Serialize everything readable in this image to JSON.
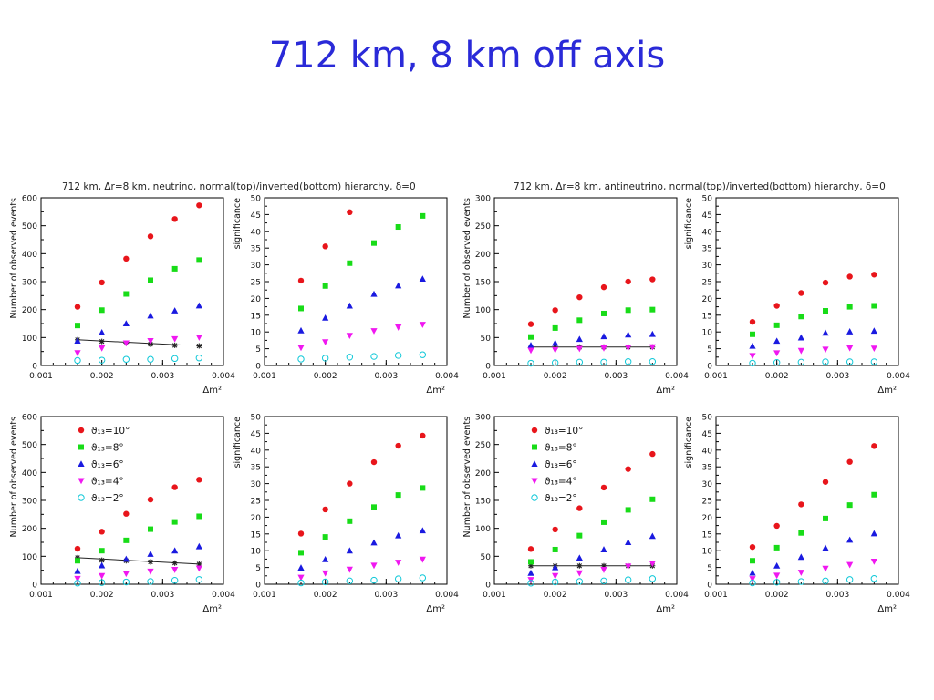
{
  "slide": {
    "title": "712 km, 8 km off axis"
  },
  "panel_titles": [
    "712 km, Δr=8 km, neutrino, normal(top)/inverted(bottom) hierarchy, δ=0",
    "712 km, Δr=8 km, antineutrino, normal(top)/inverted(bottom) hierarchy, δ=0"
  ],
  "chart_data": [
    {
      "id": "nu-normal-events",
      "type": "scatter",
      "xlabel": "Δm²",
      "ylabel": "Number of observed events",
      "xlim": [
        0.001,
        0.004
      ],
      "ylim": [
        0,
        600
      ],
      "xticks": [
        "0.001",
        "0.002",
        "0.003",
        "0.004"
      ],
      "yticks": [
        "0",
        "100",
        "200",
        "300",
        "400",
        "500",
        "600"
      ],
      "x": [
        0.0016,
        0.002,
        0.0024,
        0.0028,
        0.0032,
        0.0036
      ],
      "series": [
        {
          "theta": "ϑ₁₃=10°",
          "color": "#e8151b",
          "marker": "circle",
          "values": [
            210,
            297,
            382,
            462,
            524,
            573
          ]
        },
        {
          "theta": "ϑ₁₃=8°",
          "color": "#18dc18",
          "marker": "square",
          "values": [
            143,
            198,
            256,
            305,
            346,
            377
          ]
        },
        {
          "theta": "ϑ₁₃=6°",
          "color": "#1a1ae0",
          "marker": "triangle-up",
          "values": [
            88,
            118,
            150,
            178,
            196,
            214
          ]
        },
        {
          "theta": "ϑ₁₃=4°",
          "color": "#f018f0",
          "marker": "triangle-down",
          "values": [
            45,
            62,
            80,
            88,
            95,
            101
          ]
        },
        {
          "theta": "ϑ₁₃=2°",
          "color": "#10c8d8",
          "marker": "open-circle",
          "values": [
            18,
            19,
            22,
            22,
            25,
            27
          ]
        }
      ],
      "background": {
        "color": "#222222",
        "x": [
          0.0016,
          0.002,
          0.0024,
          0.0028,
          0.0032,
          0.0036
        ],
        "values": [
          92,
          86,
          80,
          76,
          72,
          70
        ],
        "line_x": [
          0.0016,
          0.0033
        ]
      }
    },
    {
      "id": "nu-normal-significance",
      "type": "scatter",
      "xlabel": "Δm²",
      "ylabel": "significance",
      "xlim": [
        0.001,
        0.004
      ],
      "ylim": [
        0,
        50
      ],
      "xticks": [
        "0.001",
        "0.002",
        "0.003",
        "0.004"
      ],
      "yticks": [
        "0",
        "5",
        "10",
        "15",
        "20",
        "25",
        "30",
        "35",
        "40",
        "45",
        "50"
      ],
      "x": [
        0.0016,
        0.002,
        0.0024,
        0.0028,
        0.0032,
        0.0036
      ],
      "series": [
        {
          "color": "#e8151b",
          "marker": "circle",
          "values": [
            25.3,
            35.5,
            45.7,
            null,
            null,
            null
          ]
        },
        {
          "color": "#18dc18",
          "marker": "square",
          "values": [
            17.0,
            23.7,
            30.5,
            36.5,
            41.3,
            44.6
          ]
        },
        {
          "color": "#1a1ae0",
          "marker": "triangle-up",
          "values": [
            10.4,
            14.2,
            17.8,
            21.3,
            23.8,
            25.8
          ]
        },
        {
          "color": "#f018f0",
          "marker": "triangle-down",
          "values": [
            5.3,
            7.0,
            8.9,
            10.3,
            11.4,
            12.2
          ]
        },
        {
          "color": "#10c8d8",
          "marker": "open-circle",
          "values": [
            1.9,
            2.2,
            2.5,
            2.7,
            3.0,
            3.2
          ]
        }
      ]
    },
    {
      "id": "anu-normal-events",
      "type": "scatter",
      "xlabel": "Δm²",
      "ylabel": "Number of observed events",
      "xlim": [
        0.001,
        0.004
      ],
      "ylim": [
        0,
        300
      ],
      "xticks": [
        "0.001",
        "0.002",
        "0.003",
        "0.004"
      ],
      "yticks": [
        "0",
        "50",
        "100",
        "150",
        "200",
        "250",
        "300"
      ],
      "x": [
        0.0016,
        0.002,
        0.0024,
        0.0028,
        0.0032,
        0.0036
      ],
      "series": [
        {
          "color": "#e8151b",
          "marker": "circle",
          "values": [
            74,
            99,
            122,
            140,
            150,
            154
          ]
        },
        {
          "color": "#18dc18",
          "marker": "square",
          "values": [
            51,
            67,
            81,
            93,
            99,
            100
          ]
        },
        {
          "color": "#1a1ae0",
          "marker": "triangle-up",
          "values": [
            36,
            40,
            47,
            52,
            55,
            56
          ]
        },
        {
          "color": "#f018f0",
          "marker": "triangle-down",
          "values": [
            27,
            28,
            30,
            31,
            32,
            33
          ]
        },
        {
          "color": "#10c8d8",
          "marker": "open-circle",
          "values": [
            4,
            5,
            6,
            6,
            7,
            7
          ]
        }
      ],
      "background": {
        "color": "#222222",
        "x": [
          0.0016,
          0.002,
          0.0024,
          0.0028,
          0.0032,
          0.0036
        ],
        "values": [
          33,
          33,
          33,
          33,
          33,
          33
        ],
        "line_x": [
          0.0016,
          0.0036
        ]
      }
    },
    {
      "id": "anu-normal-significance",
      "type": "scatter",
      "xlabel": "Δm²",
      "ylabel": "significance",
      "xlim": [
        0.001,
        0.004
      ],
      "ylim": [
        0,
        50
      ],
      "xticks": [
        "0.001",
        "0.002",
        "0.003",
        "0.004"
      ],
      "yticks": [
        "0",
        "5",
        "10",
        "15",
        "20",
        "25",
        "30",
        "35",
        "40",
        "45",
        "50"
      ],
      "x": [
        0.0016,
        0.002,
        0.0024,
        0.0028,
        0.0032,
        0.0036
      ],
      "series": [
        {
          "color": "#e8151b",
          "marker": "circle",
          "values": [
            13.0,
            17.8,
            21.6,
            24.7,
            26.5,
            27.1
          ]
        },
        {
          "color": "#18dc18",
          "marker": "square",
          "values": [
            9.3,
            12.0,
            14.6,
            16.3,
            17.5,
            17.8
          ]
        },
        {
          "color": "#1a1ae0",
          "marker": "triangle-up",
          "values": [
            5.8,
            7.3,
            8.3,
            9.7,
            10.1,
            10.3
          ]
        },
        {
          "color": "#f018f0",
          "marker": "triangle-down",
          "values": [
            2.9,
            3.7,
            4.4,
            4.8,
            5.2,
            5.1
          ]
        },
        {
          "color": "#10c8d8",
          "marker": "open-circle",
          "values": [
            0.7,
            0.9,
            1.0,
            1.1,
            1.1,
            1.1
          ]
        }
      ]
    },
    {
      "id": "nu-inverted-events",
      "type": "scatter",
      "xlabel": "Δm²",
      "ylabel": "Number of observed events",
      "xlim": [
        0.001,
        0.004
      ],
      "ylim": [
        0,
        600
      ],
      "xticks": [
        "0.001",
        "0.002",
        "0.003",
        "0.004"
      ],
      "yticks": [
        "0",
        "100",
        "200",
        "300",
        "400",
        "500",
        "600"
      ],
      "x": [
        0.0016,
        0.002,
        0.0024,
        0.0028,
        0.0032,
        0.0036
      ],
      "series": [
        {
          "color": "#e8151b",
          "marker": "circle",
          "values": [
            127,
            188,
            252,
            303,
            347,
            374
          ]
        },
        {
          "color": "#18dc18",
          "marker": "square",
          "values": [
            84,
            120,
            157,
            197,
            223,
            243
          ]
        },
        {
          "color": "#1a1ae0",
          "marker": "triangle-up",
          "values": [
            47,
            67,
            90,
            108,
            120,
            135
          ]
        },
        {
          "color": "#f018f0",
          "marker": "triangle-down",
          "values": [
            20,
            30,
            38,
            46,
            52,
            57
          ]
        },
        {
          "color": "#10c8d8",
          "marker": "open-circle",
          "values": [
            4,
            6,
            8,
            10,
            14,
            17
          ]
        }
      ],
      "background": {
        "color": "#222222",
        "x": [
          0.0016,
          0.002,
          0.0024,
          0.0028,
          0.0032,
          0.0036
        ],
        "values": [
          95,
          86,
          84,
          80,
          76,
          72
        ],
        "line_x": [
          0.0016,
          0.0036
        ]
      },
      "legend": {
        "placement": "top-left",
        "entries": [
          {
            "label": "ϑ₁₃=10°",
            "color": "#e8151b",
            "marker": "circle"
          },
          {
            "label": "ϑ₁₃=8°",
            "color": "#18dc18",
            "marker": "square"
          },
          {
            "label": "ϑ₁₃=6°",
            "color": "#1a1ae0",
            "marker": "triangle-up"
          },
          {
            "label": "ϑ₁₃=4°",
            "color": "#f018f0",
            "marker": "triangle-down"
          },
          {
            "label": "ϑ₁₃=2°",
            "color": "#10c8d8",
            "marker": "open-circle"
          }
        ]
      }
    },
    {
      "id": "nu-inverted-significance",
      "type": "scatter",
      "xlabel": "Δm²",
      "ylabel": "significance",
      "xlim": [
        0.001,
        0.004
      ],
      "ylim": [
        0,
        50
      ],
      "xticks": [
        "0.001",
        "0.002",
        "0.003",
        "0.004"
      ],
      "yticks": [
        "0",
        "5",
        "10",
        "15",
        "20",
        "25",
        "30",
        "35",
        "40",
        "45",
        "50"
      ],
      "x": [
        0.0016,
        0.002,
        0.0024,
        0.0028,
        0.0032,
        0.0036
      ],
      "series": [
        {
          "color": "#e8151b",
          "marker": "circle",
          "values": [
            15.1,
            22.3,
            30.0,
            36.4,
            41.3,
            44.3
          ]
        },
        {
          "color": "#18dc18",
          "marker": "square",
          "values": [
            9.4,
            14.1,
            18.8,
            23.0,
            26.6,
            28.7
          ]
        },
        {
          "color": "#1a1ae0",
          "marker": "triangle-up",
          "values": [
            4.9,
            7.4,
            10.0,
            12.4,
            14.5,
            16.0
          ]
        },
        {
          "color": "#f018f0",
          "marker": "triangle-down",
          "values": [
            2.0,
            3.3,
            4.4,
            5.6,
            6.5,
            7.4
          ]
        },
        {
          "color": "#10c8d8",
          "marker": "open-circle",
          "values": [
            0.4,
            0.7,
            1.0,
            1.2,
            1.6,
            1.9
          ]
        }
      ]
    },
    {
      "id": "anu-inverted-events",
      "type": "scatter",
      "xlabel": "Δm²",
      "ylabel": "Number of observed events",
      "xlim": [
        0.001,
        0.004
      ],
      "ylim": [
        0,
        300
      ],
      "xticks": [
        "0.001",
        "0.002",
        "0.003",
        "0.004"
      ],
      "yticks": [
        "0",
        "50",
        "100",
        "150",
        "200",
        "250",
        "300"
      ],
      "x": [
        0.0016,
        0.002,
        0.0024,
        0.0028,
        0.0032,
        0.0036
      ],
      "series": [
        {
          "color": "#e8151b",
          "marker": "circle",
          "values": [
            63,
            98,
            136,
            173,
            206,
            233
          ]
        },
        {
          "color": "#18dc18",
          "marker": "square",
          "values": [
            40,
            62,
            87,
            111,
            133,
            152
          ]
        },
        {
          "color": "#1a1ae0",
          "marker": "triangle-up",
          "values": [
            20,
            30,
            47,
            62,
            75,
            86
          ]
        },
        {
          "color": "#f018f0",
          "marker": "triangle-down",
          "values": [
            8,
            15,
            20,
            26,
            32,
            37
          ]
        },
        {
          "color": "#10c8d8",
          "marker": "open-circle",
          "values": [
            2,
            4,
            5,
            6,
            8,
            10
          ]
        }
      ],
      "background": {
        "color": "#222222",
        "x": [
          0.0016,
          0.002,
          0.0024,
          0.0028,
          0.0032,
          0.0036
        ],
        "values": [
          33,
          33,
          33,
          33,
          33,
          33
        ],
        "line_x": [
          0.0016,
          0.0036
        ]
      },
      "legend": {
        "placement": "top-left",
        "entries": [
          {
            "label": "ϑ₁₃=10°",
            "color": "#e8151b",
            "marker": "circle"
          },
          {
            "label": "ϑ₁₃=8°",
            "color": "#18dc18",
            "marker": "square"
          },
          {
            "label": "ϑ₁₃=6°",
            "color": "#1a1ae0",
            "marker": "triangle-up"
          },
          {
            "label": "ϑ₁₃=4°",
            "color": "#f018f0",
            "marker": "triangle-down"
          },
          {
            "label": "ϑ₁₃=2°",
            "color": "#10c8d8",
            "marker": "open-circle"
          }
        ]
      }
    },
    {
      "id": "anu-inverted-significance",
      "type": "scatter",
      "xlabel": "Δm²",
      "ylabel": "significance",
      "xlim": [
        0.001,
        0.004
      ],
      "ylim": [
        0,
        50
      ],
      "xticks": [
        "0.001",
        "0.002",
        "0.003",
        "0.004"
      ],
      "yticks": [
        "0",
        "5",
        "10",
        "15",
        "20",
        "25",
        "30",
        "35",
        "40",
        "45",
        "50"
      ],
      "x": [
        0.0016,
        0.002,
        0.0024,
        0.0028,
        0.0032,
        0.0036
      ],
      "series": [
        {
          "color": "#e8151b",
          "marker": "circle",
          "values": [
            11.1,
            17.4,
            23.8,
            30.5,
            36.5,
            41.2
          ]
        },
        {
          "color": "#18dc18",
          "marker": "square",
          "values": [
            7.0,
            10.9,
            15.3,
            19.6,
            23.6,
            26.7
          ]
        },
        {
          "color": "#1a1ae0",
          "marker": "triangle-up",
          "values": [
            3.4,
            5.5,
            8.1,
            10.8,
            13.2,
            15.1
          ]
        },
        {
          "color": "#f018f0",
          "marker": "triangle-down",
          "values": [
            1.6,
            2.6,
            3.5,
            4.7,
            5.8,
            6.8
          ]
        },
        {
          "color": "#10c8d8",
          "marker": "open-circle",
          "values": [
            0.4,
            0.6,
            0.8,
            1.0,
            1.4,
            1.7
          ]
        }
      ]
    }
  ]
}
